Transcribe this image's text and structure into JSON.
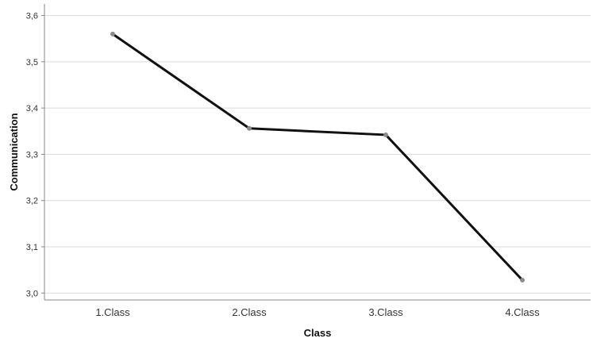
{
  "chart_data": {
    "type": "line",
    "title": "",
    "xlabel": "Class",
    "ylabel": "Communication",
    "categories": [
      "1.Class",
      "2.Class",
      "3.Class",
      "4.Class"
    ],
    "series": [
      {
        "values": [
          3.56,
          3.356,
          3.342,
          3.028
        ]
      }
    ],
    "ylim": [
      2.985,
      3.625
    ],
    "yticks": [
      "3,0",
      "3,1",
      "3,2",
      "3,3",
      "3,4",
      "3,5",
      "3,6"
    ],
    "ytick_values": [
      3.0,
      3.1,
      3.2,
      3.3,
      3.4,
      3.5,
      3.6
    ],
    "grid": "horizontal",
    "legend": "none",
    "colors": {
      "line": "#111111",
      "marker": "#8c8c8c",
      "grid": "#d9d9d9",
      "axis": "#888888"
    }
  }
}
